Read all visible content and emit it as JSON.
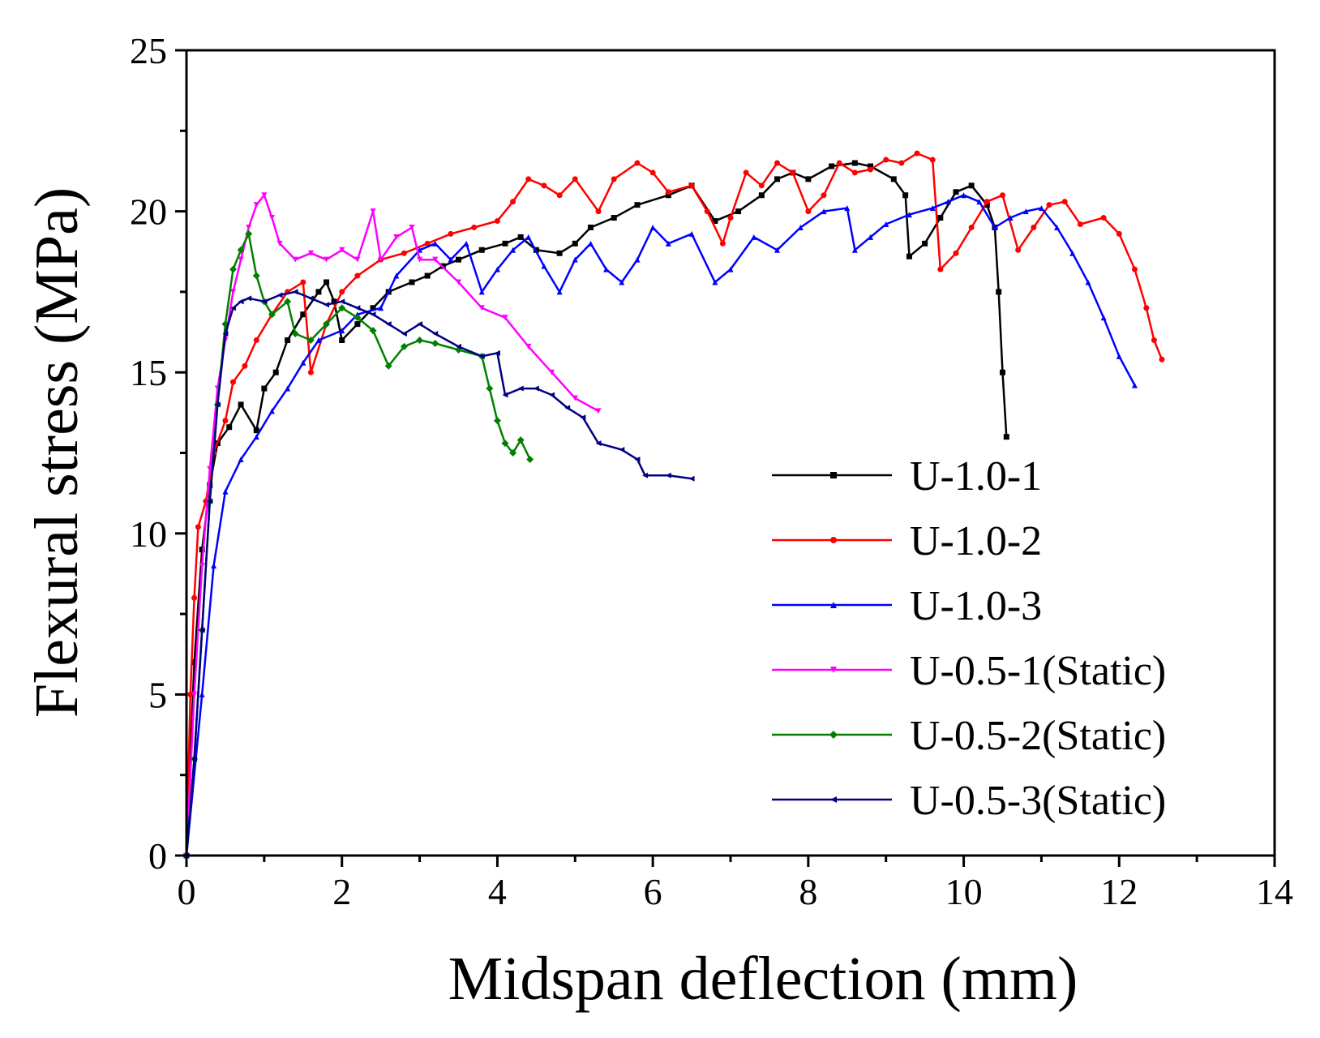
{
  "chart_data": {
    "type": "line",
    "title": "",
    "xlabel": "Midspan deflection (mm)",
    "ylabel": "Flexural stress (MPa)",
    "xlim": [
      0,
      14
    ],
    "ylim": [
      0,
      25
    ],
    "xticks": [
      0,
      2,
      4,
      6,
      8,
      10,
      12,
      14
    ],
    "yticks": [
      0,
      5,
      10,
      15,
      20,
      25
    ],
    "grid": false,
    "legend_position": "center-right",
    "series": [
      {
        "name": "U-1.0-1",
        "color": "#000000",
        "marker": "square",
        "points": [
          [
            0,
            0
          ],
          [
            0.1,
            6
          ],
          [
            0.2,
            9.5
          ],
          [
            0.3,
            11.5
          ],
          [
            0.4,
            12.8
          ],
          [
            0.55,
            13.3
          ],
          [
            0.7,
            14
          ],
          [
            0.9,
            13.2
          ],
          [
            1.0,
            14.5
          ],
          [
            1.15,
            15
          ],
          [
            1.3,
            16
          ],
          [
            1.5,
            16.8
          ],
          [
            1.7,
            17.5
          ],
          [
            1.8,
            17.8
          ],
          [
            1.9,
            17.2
          ],
          [
            2.0,
            16
          ],
          [
            2.2,
            16.5
          ],
          [
            2.4,
            17
          ],
          [
            2.6,
            17.5
          ],
          [
            2.9,
            17.8
          ],
          [
            3.1,
            18
          ],
          [
            3.3,
            18.3
          ],
          [
            3.5,
            18.5
          ],
          [
            3.8,
            18.8
          ],
          [
            4.1,
            19
          ],
          [
            4.3,
            19.2
          ],
          [
            4.5,
            18.8
          ],
          [
            4.8,
            18.7
          ],
          [
            5.0,
            19
          ],
          [
            5.2,
            19.5
          ],
          [
            5.5,
            19.8
          ],
          [
            5.8,
            20.2
          ],
          [
            6.2,
            20.5
          ],
          [
            6.5,
            20.8
          ],
          [
            6.8,
            19.7
          ],
          [
            7.1,
            20
          ],
          [
            7.4,
            20.5
          ],
          [
            7.6,
            21
          ],
          [
            7.8,
            21.2
          ],
          [
            8.0,
            21
          ],
          [
            8.3,
            21.4
          ],
          [
            8.6,
            21.5
          ],
          [
            8.8,
            21.4
          ],
          [
            9.1,
            21
          ],
          [
            9.25,
            20.5
          ],
          [
            9.3,
            18.6
          ],
          [
            9.5,
            19
          ],
          [
            9.7,
            19.8
          ],
          [
            9.9,
            20.6
          ],
          [
            10.1,
            20.8
          ],
          [
            10.3,
            20.2
          ],
          [
            10.4,
            19.5
          ],
          [
            10.45,
            17.5
          ],
          [
            10.5,
            15
          ],
          [
            10.55,
            13
          ]
        ]
      },
      {
        "name": "U-1.0-2",
        "color": "#ff0000",
        "marker": "circle",
        "points": [
          [
            0,
            0
          ],
          [
            0.05,
            5
          ],
          [
            0.1,
            8
          ],
          [
            0.15,
            10.2
          ],
          [
            0.25,
            11
          ],
          [
            0.35,
            12.5
          ],
          [
            0.5,
            13.5
          ],
          [
            0.6,
            14.7
          ],
          [
            0.75,
            15.2
          ],
          [
            0.9,
            16
          ],
          [
            1.1,
            16.8
          ],
          [
            1.3,
            17.5
          ],
          [
            1.5,
            17.8
          ],
          [
            1.6,
            15
          ],
          [
            1.8,
            16.5
          ],
          [
            2.0,
            17.5
          ],
          [
            2.2,
            18
          ],
          [
            2.5,
            18.5
          ],
          [
            2.8,
            18.7
          ],
          [
            3.1,
            19
          ],
          [
            3.4,
            19.3
          ],
          [
            3.7,
            19.5
          ],
          [
            4.0,
            19.7
          ],
          [
            4.2,
            20.3
          ],
          [
            4.4,
            21
          ],
          [
            4.6,
            20.8
          ],
          [
            4.8,
            20.5
          ],
          [
            5.0,
            21
          ],
          [
            5.3,
            20
          ],
          [
            5.5,
            21
          ],
          [
            5.8,
            21.5
          ],
          [
            6.0,
            21.2
          ],
          [
            6.2,
            20.6
          ],
          [
            6.5,
            20.8
          ],
          [
            6.7,
            20
          ],
          [
            6.9,
            19
          ],
          [
            7.0,
            19.8
          ],
          [
            7.2,
            21.2
          ],
          [
            7.4,
            20.8
          ],
          [
            7.6,
            21.5
          ],
          [
            7.8,
            21.2
          ],
          [
            8.0,
            20
          ],
          [
            8.2,
            20.5
          ],
          [
            8.4,
            21.5
          ],
          [
            8.6,
            21.2
          ],
          [
            8.8,
            21.3
          ],
          [
            9.0,
            21.6
          ],
          [
            9.2,
            21.5
          ],
          [
            9.4,
            21.8
          ],
          [
            9.6,
            21.6
          ],
          [
            9.7,
            18.2
          ],
          [
            9.9,
            18.7
          ],
          [
            10.1,
            19.5
          ],
          [
            10.3,
            20.3
          ],
          [
            10.5,
            20.5
          ],
          [
            10.7,
            18.8
          ],
          [
            10.9,
            19.5
          ],
          [
            11.1,
            20.2
          ],
          [
            11.3,
            20.3
          ],
          [
            11.5,
            19.6
          ],
          [
            11.8,
            19.8
          ],
          [
            12.0,
            19.3
          ],
          [
            12.2,
            18.2
          ],
          [
            12.35,
            17
          ],
          [
            12.45,
            16
          ],
          [
            12.55,
            15.4
          ]
        ]
      },
      {
        "name": "U-1.0-3",
        "color": "#0000ff",
        "marker": "triangle-up",
        "points": [
          [
            0,
            0
          ],
          [
            0.2,
            5
          ],
          [
            0.35,
            9
          ],
          [
            0.5,
            11.3
          ],
          [
            0.7,
            12.3
          ],
          [
            0.9,
            13
          ],
          [
            1.1,
            13.8
          ],
          [
            1.3,
            14.5
          ],
          [
            1.5,
            15.3
          ],
          [
            1.7,
            16
          ],
          [
            2.0,
            16.3
          ],
          [
            2.2,
            16.8
          ],
          [
            2.5,
            17
          ],
          [
            2.7,
            18
          ],
          [
            3.0,
            18.8
          ],
          [
            3.2,
            19
          ],
          [
            3.4,
            18.5
          ],
          [
            3.6,
            19
          ],
          [
            3.8,
            17.5
          ],
          [
            4.0,
            18.2
          ],
          [
            4.2,
            18.8
          ],
          [
            4.4,
            19.2
          ],
          [
            4.6,
            18.3
          ],
          [
            4.8,
            17.5
          ],
          [
            5.0,
            18.5
          ],
          [
            5.2,
            19
          ],
          [
            5.4,
            18.2
          ],
          [
            5.6,
            17.8
          ],
          [
            5.8,
            18.5
          ],
          [
            6.0,
            19.5
          ],
          [
            6.2,
            19
          ],
          [
            6.5,
            19.3
          ],
          [
            6.8,
            17.8
          ],
          [
            7.0,
            18.2
          ],
          [
            7.3,
            19.2
          ],
          [
            7.6,
            18.8
          ],
          [
            7.9,
            19.5
          ],
          [
            8.2,
            20
          ],
          [
            8.5,
            20.1
          ],
          [
            8.6,
            18.8
          ],
          [
            8.8,
            19.2
          ],
          [
            9.0,
            19.6
          ],
          [
            9.3,
            19.9
          ],
          [
            9.6,
            20.1
          ],
          [
            9.8,
            20.3
          ],
          [
            10.0,
            20.5
          ],
          [
            10.2,
            20.3
          ],
          [
            10.4,
            19.5
          ],
          [
            10.6,
            19.8
          ],
          [
            10.8,
            20
          ],
          [
            11.0,
            20.1
          ],
          [
            11.2,
            19.5
          ],
          [
            11.4,
            18.7
          ],
          [
            11.6,
            17.8
          ],
          [
            11.8,
            16.7
          ],
          [
            12.0,
            15.5
          ],
          [
            12.2,
            14.6
          ]
        ]
      },
      {
        "name": "U-0.5-1(Static)",
        "color": "#ff00ff",
        "marker": "triangle-down",
        "points": [
          [
            0,
            0
          ],
          [
            0.1,
            5
          ],
          [
            0.2,
            9
          ],
          [
            0.3,
            12
          ],
          [
            0.4,
            14.5
          ],
          [
            0.5,
            16
          ],
          [
            0.6,
            17.5
          ],
          [
            0.7,
            18.5
          ],
          [
            0.8,
            19.5
          ],
          [
            0.9,
            20.2
          ],
          [
            1.0,
            20.5
          ],
          [
            1.1,
            19.8
          ],
          [
            1.2,
            19
          ],
          [
            1.4,
            18.5
          ],
          [
            1.6,
            18.7
          ],
          [
            1.8,
            18.5
          ],
          [
            2.0,
            18.8
          ],
          [
            2.2,
            18.5
          ],
          [
            2.4,
            20
          ],
          [
            2.5,
            18.5
          ],
          [
            2.7,
            19.2
          ],
          [
            2.9,
            19.5
          ],
          [
            3.0,
            18.5
          ],
          [
            3.2,
            18.5
          ],
          [
            3.5,
            17.8
          ],
          [
            3.8,
            17
          ],
          [
            4.1,
            16.7
          ],
          [
            4.4,
            15.8
          ],
          [
            4.7,
            15
          ],
          [
            5.0,
            14.2
          ],
          [
            5.3,
            13.8
          ]
        ]
      },
      {
        "name": "U-0.5-2(Static)",
        "color": "#008000",
        "marker": "diamond",
        "points": [
          [
            0,
            0
          ],
          [
            0.1,
            3
          ],
          [
            0.2,
            7
          ],
          [
            0.3,
            11
          ],
          [
            0.4,
            14
          ],
          [
            0.5,
            16.5
          ],
          [
            0.6,
            18.2
          ],
          [
            0.7,
            18.8
          ],
          [
            0.8,
            19.3
          ],
          [
            0.9,
            18
          ],
          [
            1.0,
            17.2
          ],
          [
            1.1,
            16.8
          ],
          [
            1.3,
            17.2
          ],
          [
            1.4,
            16.2
          ],
          [
            1.6,
            16
          ],
          [
            1.8,
            16.5
          ],
          [
            2.0,
            17
          ],
          [
            2.2,
            16.7
          ],
          [
            2.4,
            16.3
          ],
          [
            2.6,
            15.2
          ],
          [
            2.8,
            15.8
          ],
          [
            3.0,
            16
          ],
          [
            3.2,
            15.9
          ],
          [
            3.5,
            15.7
          ],
          [
            3.8,
            15.5
          ],
          [
            3.9,
            14.5
          ],
          [
            4.0,
            13.5
          ],
          [
            4.1,
            12.8
          ],
          [
            4.2,
            12.5
          ],
          [
            4.3,
            12.9
          ],
          [
            4.42,
            12.3
          ]
        ]
      },
      {
        "name": "U-0.5-3(Static)",
        "color": "#000080",
        "marker": "triangle-left",
        "points": [
          [
            0,
            0
          ],
          [
            0.1,
            3
          ],
          [
            0.2,
            7
          ],
          [
            0.3,
            11
          ],
          [
            0.4,
            14
          ],
          [
            0.5,
            16.2
          ],
          [
            0.6,
            17
          ],
          [
            0.7,
            17.2
          ],
          [
            0.8,
            17.3
          ],
          [
            1.0,
            17.2
          ],
          [
            1.2,
            17.4
          ],
          [
            1.4,
            17.5
          ],
          [
            1.6,
            17.3
          ],
          [
            1.8,
            17.1
          ],
          [
            2.0,
            17.2
          ],
          [
            2.2,
            17
          ],
          [
            2.4,
            16.8
          ],
          [
            2.6,
            16.5
          ],
          [
            2.8,
            16.2
          ],
          [
            3.0,
            16.5
          ],
          [
            3.2,
            16.2
          ],
          [
            3.5,
            15.8
          ],
          [
            3.8,
            15.5
          ],
          [
            4.0,
            15.6
          ],
          [
            4.1,
            14.3
          ],
          [
            4.3,
            14.5
          ],
          [
            4.5,
            14.5
          ],
          [
            4.7,
            14.3
          ],
          [
            4.9,
            13.9
          ],
          [
            5.1,
            13.6
          ],
          [
            5.3,
            12.8
          ],
          [
            5.6,
            12.6
          ],
          [
            5.8,
            12.3
          ],
          [
            5.9,
            11.8
          ],
          [
            6.2,
            11.8
          ],
          [
            6.5,
            11.7
          ]
        ]
      }
    ]
  }
}
